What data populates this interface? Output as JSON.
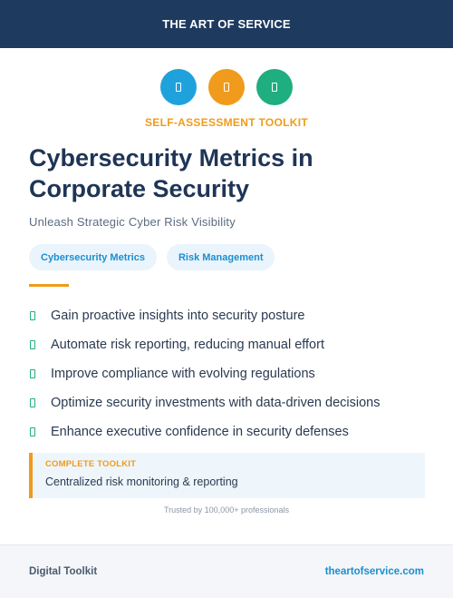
{
  "banner": {
    "text": "THE ART OF SERVICE"
  },
  "icons": [
    "document-icon",
    "document-icon",
    "document-icon"
  ],
  "colors": {
    "navy": "#1e3a5f",
    "orange": "#f09b1b",
    "blue": "#1fa2dc",
    "green": "#1fae7f"
  },
  "eyebrow": "SELF-ASSESSMENT TOOLKIT",
  "title": "Cybersecurity Metrics in Corporate Security",
  "subtitle": "Unleash Strategic Cyber Risk Visibility",
  "tags": [
    "Cybersecurity Metrics",
    "Risk Management"
  ],
  "benefits": [
    "Gain proactive insights into security posture",
    "Automate risk reporting, reducing manual effort",
    "Improve compliance with evolving regulations",
    "Optimize security investments with data-driven decisions",
    "Enhance executive confidence in security defenses"
  ],
  "callout": {
    "label": "COMPLETE TOOLKIT",
    "text": "Centralized risk monitoring & reporting"
  },
  "trust": "Trusted by 100,000+ professionals",
  "footer": {
    "left": "Digital Toolkit",
    "right": "theartofservice.com"
  }
}
